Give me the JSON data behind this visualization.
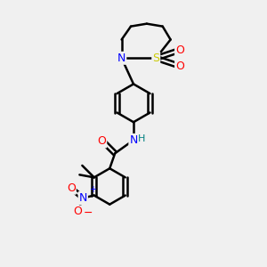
{
  "bg_color": "#f0f0f0",
  "bond_color": "#000000",
  "bond_width": 1.8,
  "N_color": "#0000ff",
  "O_color": "#ff0000",
  "S_color": "#cccc00",
  "H_color": "#008080",
  "figsize": [
    3.0,
    3.0
  ],
  "dpi": 100,
  "xlim": [
    0,
    10
  ],
  "ylim": [
    0,
    10
  ]
}
